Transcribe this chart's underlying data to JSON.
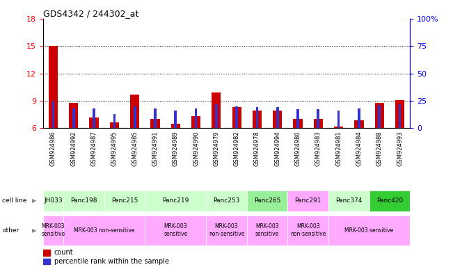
{
  "title": "GDS4342 / 244302_at",
  "samples": [
    "GSM924986",
    "GSM924992",
    "GSM924987",
    "GSM924995",
    "GSM924985",
    "GSM924991",
    "GSM924989",
    "GSM924990",
    "GSM924979",
    "GSM924982",
    "GSM924978",
    "GSM924994",
    "GSM924980",
    "GSM924983",
    "GSM924981",
    "GSM924984",
    "GSM924988",
    "GSM924993"
  ],
  "red_counts": [
    15.0,
    8.8,
    7.2,
    6.6,
    9.7,
    7.0,
    6.5,
    7.3,
    9.9,
    8.3,
    7.9,
    7.9,
    7.0,
    7.0,
    6.2,
    6.9,
    8.8,
    9.1
  ],
  "blue_pct": [
    25.0,
    18.0,
    18.0,
    13.0,
    20.0,
    18.0,
    16.0,
    18.0,
    22.0,
    20.0,
    19.0,
    19.0,
    17.5,
    17.5,
    16.0,
    18.0,
    21.0,
    22.0
  ],
  "cell_lines": [
    {
      "label": "JH033",
      "start": 0,
      "end": 0,
      "color": "#ccffcc"
    },
    {
      "label": "Panc198",
      "start": 1,
      "end": 2,
      "color": "#ccffcc"
    },
    {
      "label": "Panc215",
      "start": 3,
      "end": 4,
      "color": "#ccffcc"
    },
    {
      "label": "Panc219",
      "start": 5,
      "end": 7,
      "color": "#ccffcc"
    },
    {
      "label": "Panc253",
      "start": 8,
      "end": 9,
      "color": "#ccffcc"
    },
    {
      "label": "Panc265",
      "start": 10,
      "end": 11,
      "color": "#99ee99"
    },
    {
      "label": "Panc291",
      "start": 12,
      "end": 13,
      "color": "#ffaaff"
    },
    {
      "label": "Panc374",
      "start": 14,
      "end": 15,
      "color": "#ccffcc"
    },
    {
      "label": "Panc420",
      "start": 16,
      "end": 17,
      "color": "#33cc33"
    }
  ],
  "other_groups": [
    {
      "label": "MRK-003\nsensitive",
      "start": 0,
      "end": 0,
      "color": "#ffaaff"
    },
    {
      "label": "MRK-003 non-sensitive",
      "start": 1,
      "end": 4,
      "color": "#ffaaff"
    },
    {
      "label": "MRK-003\nsensitive",
      "start": 5,
      "end": 7,
      "color": "#ffaaff"
    },
    {
      "label": "MRK-003\nnon-sensitive",
      "start": 8,
      "end": 9,
      "color": "#ffaaff"
    },
    {
      "label": "MRK-003\nsensitive",
      "start": 10,
      "end": 11,
      "color": "#ffaaff"
    },
    {
      "label": "MRK-003\nnon-sensitive",
      "start": 12,
      "end": 13,
      "color": "#ffaaff"
    },
    {
      "label": "MRK-003 sensitive",
      "start": 14,
      "end": 17,
      "color": "#ffaaff"
    }
  ],
  "ylim_left": [
    6,
    18
  ],
  "yticks_left": [
    6,
    9,
    12,
    15,
    18
  ],
  "ylim_right": [
    0,
    100
  ],
  "yticks_right": [
    0,
    25,
    50,
    75,
    100
  ],
  "red_color": "#cc0000",
  "blue_color": "#3333cc",
  "sample_row_bg": "#cccccc"
}
